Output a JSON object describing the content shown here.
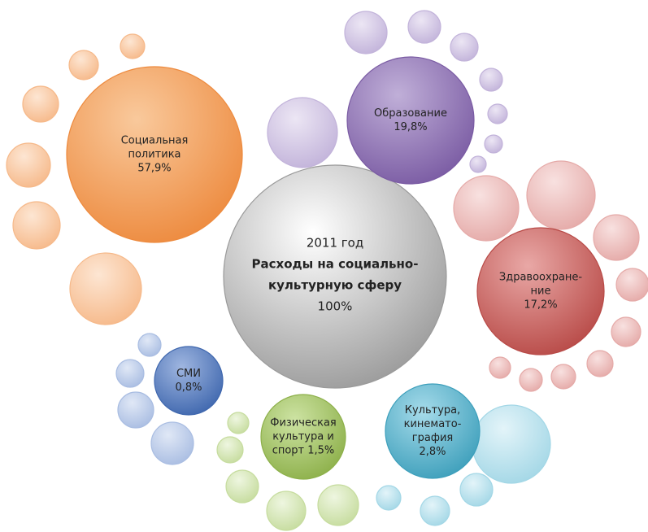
{
  "center": {
    "lines": [
      "2011 год",
      "Расходы на социально-",
      "культурную сферу",
      "100%"
    ]
  },
  "nodes": [
    {
      "lines": [
        "Социальная",
        "политика",
        "57,9%"
      ]
    },
    {
      "lines": [
        "Образование",
        "19,8%"
      ]
    },
    {
      "lines": [
        "Здравоохране-",
        "ние",
        "17,2%"
      ]
    },
    {
      "lines": [
        "СМИ",
        "0,8%"
      ]
    },
    {
      "lines": [
        "Физическая",
        "культура и",
        "спорт 1,5%"
      ]
    },
    {
      "lines": [
        "Культура,",
        "кинемато-",
        "графия",
        "2,8%"
      ]
    }
  ]
}
